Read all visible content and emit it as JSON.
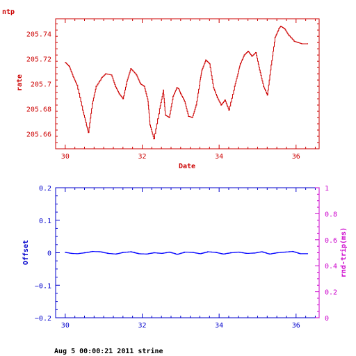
{
  "colors": {
    "top": "#cc0000",
    "offset_axis": "#0000cc",
    "rtt_axis": "#cc00cc",
    "series": "#0000ff",
    "footer": "#000000"
  },
  "footer_text": "Aug  5 00:00:21 2011 strine",
  "chart_data": [
    {
      "type": "line",
      "title": "ntp",
      "xlabel": "Date",
      "ylabel": "rate",
      "xlim": [
        29.75,
        36.6
      ],
      "ylim": [
        205.648,
        205.752
      ],
      "x_ticks": [
        30,
        32,
        34,
        36
      ],
      "x_tick_labels": [
        "30",
        "32",
        "34",
        "36"
      ],
      "y_ticks": [
        205.66,
        205.68,
        205.7,
        205.72,
        205.74
      ],
      "y_tick_labels": [
        "205.66",
        "205.68",
        "205.7",
        "205.72",
        "205.74"
      ],
      "series": [
        {
          "x": [
            30.0,
            30.1,
            30.2,
            30.3,
            30.45,
            30.55,
            30.6,
            30.7,
            30.8,
            30.95,
            31.05,
            31.2,
            31.3,
            31.4,
            31.5,
            31.6,
            31.7,
            31.85,
            31.95,
            32.05,
            32.15,
            32.2,
            32.3,
            32.45,
            32.55,
            32.6,
            32.7,
            32.8,
            32.9,
            32.95,
            33.0,
            33.1,
            33.2,
            33.3,
            33.4,
            33.5,
            33.55,
            33.65,
            33.75,
            33.85,
            33.95,
            34.05,
            34.15,
            34.25,
            34.4,
            34.5,
            34.55,
            34.65,
            34.75,
            34.85,
            34.95,
            35.05,
            35.15,
            35.25,
            35.35,
            35.45,
            35.55,
            35.6,
            35.7,
            35.8,
            35.95,
            36.05,
            36.15,
            36.3
          ],
          "y": [
            205.717,
            205.714,
            205.706,
            205.699,
            205.679,
            205.667,
            205.661,
            205.684,
            205.698,
            205.705,
            205.708,
            205.707,
            205.698,
            205.692,
            205.688,
            205.702,
            205.712,
            205.707,
            205.7,
            205.698,
            205.686,
            205.667,
            205.656,
            205.68,
            205.695,
            205.675,
            205.673,
            205.69,
            205.697,
            205.696,
            205.692,
            205.686,
            205.674,
            205.673,
            205.683,
            205.702,
            205.711,
            205.719,
            205.716,
            205.697,
            205.689,
            205.683,
            205.687,
            205.679,
            205.698,
            205.71,
            205.716,
            205.723,
            205.726,
            205.722,
            205.725,
            205.711,
            205.698,
            205.691,
            205.715,
            205.737,
            205.744,
            205.746,
            205.744,
            205.739,
            205.734,
            205.733,
            205.732,
            205.732
          ]
        }
      ]
    },
    {
      "type": "line",
      "xlabel": "",
      "ylabel": "Offset",
      "ylabel_right": "rnd-trip(ms)",
      "xlim": [
        29.75,
        36.6
      ],
      "ylim": [
        -0.2,
        0.2
      ],
      "ylim_right": [
        0,
        1
      ],
      "x_ticks": [
        30,
        32,
        34,
        36
      ],
      "x_tick_labels": [
        "30",
        "32",
        "34",
        "36"
      ],
      "y_ticks": [
        -0.2,
        -0.1,
        0,
        0.1,
        0.2
      ],
      "y_tick_labels": [
        "−0.2",
        "−0.1",
        "0",
        "0.1",
        "0.2"
      ],
      "y_ticks_right": [
        0,
        0.2,
        0.4,
        0.6,
        0.8,
        1
      ],
      "y_tick_labels_right": [
        "0",
        "0.2",
        "0.4",
        "0.6",
        "0.8",
        "1"
      ],
      "series": [
        {
          "x": [
            30.0,
            30.15,
            30.3,
            30.5,
            30.7,
            30.9,
            31.1,
            31.3,
            31.5,
            31.7,
            31.9,
            32.1,
            32.3,
            32.5,
            32.7,
            32.9,
            33.1,
            33.3,
            33.5,
            33.7,
            33.9,
            34.1,
            34.3,
            34.5,
            34.7,
            34.9,
            35.1,
            35.3,
            35.5,
            35.7,
            35.9,
            36.1,
            36.3
          ],
          "y": [
            0.001,
            -0.002,
            -0.003,
            0.0,
            0.004,
            0.003,
            -0.002,
            -0.004,
            0.001,
            0.003,
            -0.003,
            -0.004,
            0.0,
            -0.002,
            0.002,
            -0.005,
            0.002,
            0.001,
            -0.003,
            0.003,
            0.001,
            -0.004,
            0.0,
            0.002,
            -0.002,
            -0.001,
            0.003,
            -0.004,
            0.0,
            0.002,
            0.004,
            -0.003,
            -0.003
          ]
        }
      ]
    }
  ]
}
